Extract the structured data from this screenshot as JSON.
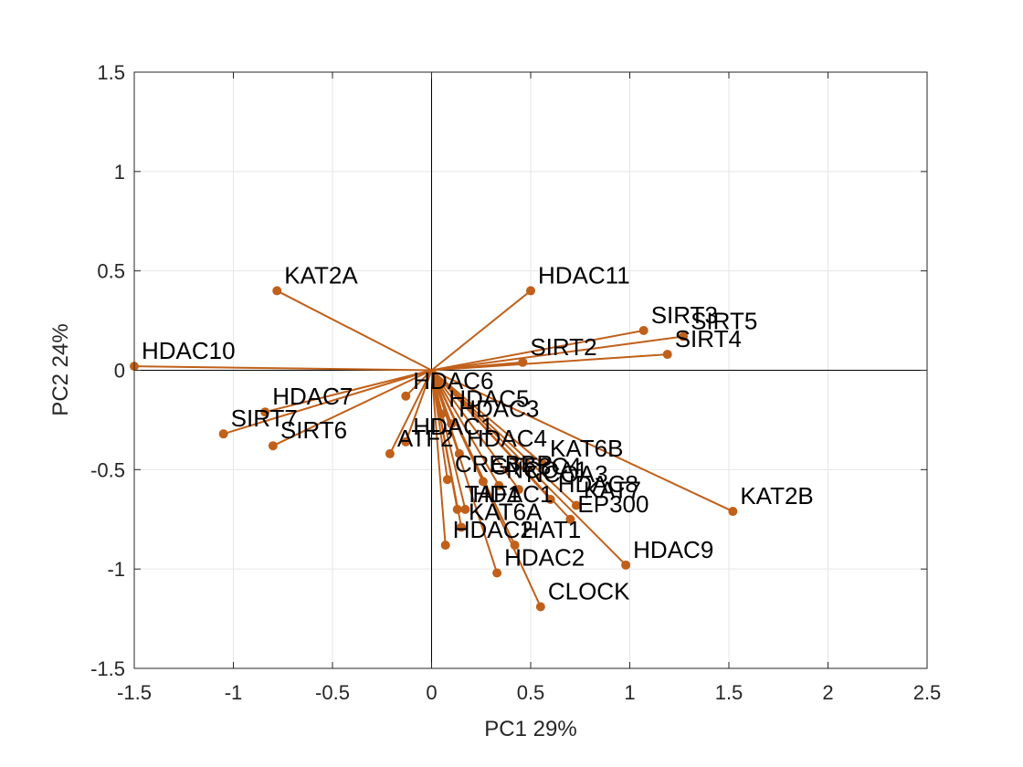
{
  "chart_data": {
    "type": "scatter",
    "subtype": "biplot",
    "title": "",
    "xlabel": "PC1 29%",
    "ylabel": "PC2 24%",
    "xlim": [
      -1.5,
      2.5
    ],
    "ylim": [
      -1.5,
      1.5
    ],
    "xticks": [
      "-1.5",
      "-1",
      "-0.5",
      "0",
      "0.5",
      "1",
      "1.5",
      "2",
      "2.5"
    ],
    "yticks": [
      "-1.5",
      "-1",
      "-0.5",
      "0",
      "0.5",
      "1",
      "1.5"
    ],
    "grid": true,
    "box": true,
    "color": "#C0601A",
    "points": [
      {
        "label": "KAT2A",
        "x": -0.78,
        "y": 0.4
      },
      {
        "label": "HDAC11",
        "x": 0.5,
        "y": 0.4
      },
      {
        "label": "SIRT3",
        "x": 1.07,
        "y": 0.2
      },
      {
        "label": "SIRT5",
        "x": 1.27,
        "y": 0.17
      },
      {
        "label": "SIRT4",
        "x": 1.19,
        "y": 0.08
      },
      {
        "label": "SIRT2",
        "x": 0.46,
        "y": 0.04
      },
      {
        "label": "HDAC10",
        "x": -1.5,
        "y": 0.02
      },
      {
        "label": "HDAC7",
        "x": -0.84,
        "y": -0.21
      },
      {
        "label": "SIRT7",
        "x": -1.05,
        "y": -0.32
      },
      {
        "label": "SIRT6",
        "x": -0.8,
        "y": -0.38
      },
      {
        "label": "HDAC6",
        "x": -0.13,
        "y": -0.13
      },
      {
        "label": "HDAC5",
        "x": 0.05,
        "y": -0.22
      },
      {
        "label": "HDAC3",
        "x": 0.1,
        "y": -0.27
      },
      {
        "label": "HDAC1",
        "x": -0.13,
        "y": -0.36
      },
      {
        "label": "ATF2",
        "x": -0.21,
        "y": -0.42
      },
      {
        "label": "HDAC4",
        "x": 0.14,
        "y": -0.42
      },
      {
        "label": "KAT6B",
        "x": 0.56,
        "y": -0.47
      },
      {
        "label": "CREBBP",
        "x": 0.08,
        "y": -0.55
      },
      {
        "label": "GTF3C4",
        "x": 0.26,
        "y": -0.56
      },
      {
        "label": "NCOA1",
        "x": 0.34,
        "y": -0.58
      },
      {
        "label": "NCOA3",
        "x": 0.44,
        "y": -0.6
      },
      {
        "label": "HDAC8",
        "x": 0.6,
        "y": -0.65
      },
      {
        "label": "KAT7",
        "x": 0.73,
        "y": -0.68
      },
      {
        "label": "TAF1",
        "x": 0.13,
        "y": -0.7
      },
      {
        "label": "HDAC1",
        "x": 0.17,
        "y": -0.7
      },
      {
        "label": "EP300",
        "x": 0.7,
        "y": -0.75
      },
      {
        "label": "KAT6A",
        "x": 0.15,
        "y": -0.79
      },
      {
        "label": "KAT2B",
        "x": 1.52,
        "y": -0.71
      },
      {
        "label": "HDAC2",
        "x": 0.07,
        "y": -0.88
      },
      {
        "label": "HAT1",
        "x": 0.42,
        "y": -0.88
      },
      {
        "label": "HDAC2",
        "x": 0.33,
        "y": -1.02
      },
      {
        "label": "HDAC9",
        "x": 0.98,
        "y": -0.98
      },
      {
        "label": "CLOCK",
        "x": 0.55,
        "y": -1.19
      }
    ]
  }
}
